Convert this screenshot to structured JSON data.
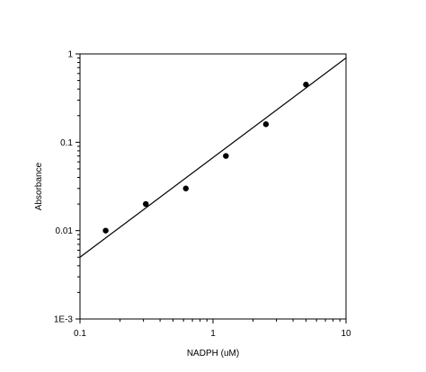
{
  "chart_data": {
    "type": "scatter",
    "title": "",
    "xlabel": "NADPH (uM)",
    "ylabel": "Absorbance",
    "xscale": "log",
    "yscale": "log",
    "xlim": [
      0.1,
      10
    ],
    "ylim": [
      0.001,
      1
    ],
    "grid": false,
    "legend": "none",
    "x_ticks": [
      {
        "value": 0.1,
        "label": "0.1"
      },
      {
        "value": 1,
        "label": "1"
      },
      {
        "value": 10,
        "label": "10"
      }
    ],
    "y_ticks": [
      {
        "value": 0.001,
        "label": "1E-3"
      },
      {
        "value": 0.01,
        "label": "0.01"
      },
      {
        "value": 0.1,
        "label": "0.1"
      },
      {
        "value": 1,
        "label": "1"
      }
    ],
    "series": [
      {
        "type": "scatter",
        "color": "#000000",
        "points": [
          {
            "x": 0.156,
            "y": 0.01
          },
          {
            "x": 0.3125,
            "y": 0.02
          },
          {
            "x": 0.625,
            "y": 0.03
          },
          {
            "x": 1.25,
            "y": 0.07
          },
          {
            "x": 2.5,
            "y": 0.16
          },
          {
            "x": 5.0,
            "y": 0.45
          }
        ]
      },
      {
        "type": "line",
        "color": "#000000",
        "points": [
          {
            "x": 0.1,
            "y": 0.005
          },
          {
            "x": 10,
            "y": 0.9
          }
        ]
      }
    ]
  }
}
